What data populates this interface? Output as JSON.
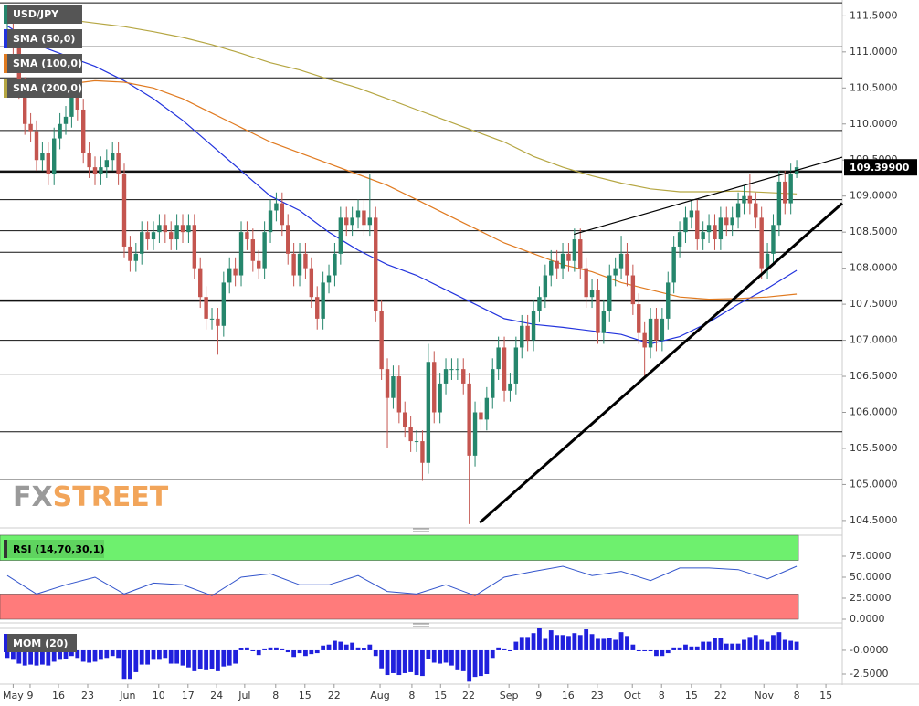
{
  "chart_data": [
    {
      "type": "candlestick",
      "title": "USD/JPY",
      "xlim": [
        -1.25,
        142.8
      ],
      "xticks": [
        {
          "value": 1.0,
          "label": "May"
        },
        {
          "value": 3.9,
          "label": "9"
        },
        {
          "value": 8.75,
          "label": "16"
        },
        {
          "value": 13.75,
          "label": "23"
        },
        {
          "value": 20.6,
          "label": "Jun"
        },
        {
          "value": 25.9,
          "label": "10"
        },
        {
          "value": 30.9,
          "label": "17"
        },
        {
          "value": 35.8,
          "label": "24"
        },
        {
          "value": 40.6,
          "label": "Jul"
        },
        {
          "value": 45.9,
          "label": "8"
        },
        {
          "value": 50.9,
          "label": "15"
        },
        {
          "value": 55.9,
          "label": "22"
        },
        {
          "value": 63.75,
          "label": "Aug"
        },
        {
          "value": 69.2,
          "label": "8"
        },
        {
          "value": 74.1,
          "label": "15"
        },
        {
          "value": 78.9,
          "label": "22"
        },
        {
          "value": 85.8,
          "label": "Sep"
        },
        {
          "value": 90.9,
          "label": "9"
        },
        {
          "value": 95.9,
          "label": "16"
        },
        {
          "value": 100.9,
          "label": "23"
        },
        {
          "value": 106.9,
          "label": "Oct"
        },
        {
          "value": 111.9,
          "label": "8"
        },
        {
          "value": 117,
          "label": "15"
        },
        {
          "value": 122,
          "label": "22"
        },
        {
          "value": 129.4,
          "label": "Nov"
        },
        {
          "value": 135,
          "label": "8"
        },
        {
          "value": 140,
          "label": "15"
        }
      ],
      "ylim": [
        104.41,
        111.72
      ],
      "yticks": [
        {
          "value": 104.5,
          "label": "104.5000"
        },
        {
          "value": 105,
          "label": "105.0000"
        },
        {
          "value": 105.5,
          "label": "105.5000"
        },
        {
          "value": 106,
          "label": "106.0000"
        },
        {
          "value": 106.5,
          "label": "106.5000"
        },
        {
          "value": 107,
          "label": "107.0000"
        },
        {
          "value": 107.5,
          "label": "107.5000"
        },
        {
          "value": 108,
          "label": "108.0000"
        },
        {
          "value": 108.5,
          "label": "108.5000"
        },
        {
          "value": 109,
          "label": "109.0000"
        },
        {
          "value": 109.5,
          "label": "109.5000"
        },
        {
          "value": 110,
          "label": "110.0000"
        },
        {
          "value": 110.5,
          "label": "110.5000"
        },
        {
          "value": 111,
          "label": "111.0000"
        },
        {
          "value": 111.5,
          "label": "111.5000"
        }
      ],
      "open": [
        111.2,
        111.3,
        111.1,
        110.5,
        110.0,
        109.9,
        109.5,
        109.6,
        109.3,
        109.8,
        110.0,
        110.1,
        110.4,
        110.2,
        109.6,
        109.4,
        109.3,
        109.4,
        109.5,
        109.6,
        109.3,
        108.3,
        108.1,
        108.2,
        108.5,
        108.4,
        108.5,
        108.6,
        108.5,
        108.4,
        108.6,
        108.5,
        108.6,
        108.0,
        107.6,
        107.3,
        107.3,
        107.2,
        107.8,
        108.0,
        107.9,
        108.5,
        108.4,
        108.1,
        108.0,
        108.5,
        108.8,
        108.9,
        108.6,
        108.2,
        107.9,
        108.2,
        108.0,
        107.6,
        107.3,
        107.8,
        107.9,
        108.2,
        108.7,
        108.6,
        108.7,
        108.8,
        108.6,
        108.7,
        107.4,
        106.6,
        106.2,
        106.5,
        106.0,
        105.8,
        105.6,
        105.6,
        105.3,
        106.7,
        106.0,
        106.4,
        106.6,
        106.6,
        106.6,
        106.4,
        105.4,
        106.0,
        105.9,
        106.2,
        106.6,
        106.9,
        106.3,
        106.4,
        106.9,
        107.2,
        107.0,
        107.4,
        107.6,
        107.9,
        108.1,
        108.0,
        108.2,
        108.1,
        108.4,
        108.0,
        107.6,
        107.7,
        107.1,
        107.4,
        107.9,
        108.0,
        108.2,
        107.9,
        107.5,
        107.1,
        106.9,
        107.3,
        107.0,
        107.3,
        107.8,
        108.3,
        108.5,
        108.7,
        108.8,
        108.4,
        108.5,
        108.6,
        108.4,
        108.7,
        108.6,
        108.7,
        108.9,
        109.0,
        108.9,
        108.7,
        108.0,
        108.2,
        108.6,
        109.2,
        108.9,
        109.3
      ],
      "high": [
        111.45,
        111.45,
        111.25,
        110.65,
        110.15,
        110.05,
        109.75,
        109.75,
        109.95,
        110.15,
        110.25,
        110.55,
        110.55,
        110.35,
        109.75,
        109.55,
        109.55,
        109.65,
        109.75,
        109.75,
        109.45,
        108.45,
        108.35,
        108.65,
        108.65,
        108.65,
        108.75,
        108.75,
        108.65,
        108.75,
        108.75,
        108.75,
        108.75,
        108.15,
        107.75,
        107.45,
        107.45,
        107.95,
        108.15,
        108.15,
        108.65,
        108.65,
        108.55,
        108.25,
        108.65,
        108.95,
        109.05,
        109.05,
        108.75,
        108.35,
        108.35,
        108.35,
        108.15,
        107.75,
        107.95,
        108.05,
        108.35,
        108.85,
        108.85,
        108.85,
        108.95,
        108.95,
        109.3,
        108.85,
        107.55,
        106.75,
        106.65,
        106.65,
        106.15,
        105.95,
        105.75,
        105.75,
        106.95,
        106.85,
        106.55,
        106.75,
        106.75,
        106.75,
        106.75,
        106.55,
        106.15,
        106.15,
        106.35,
        106.75,
        107.05,
        107.05,
        106.55,
        107.05,
        107.35,
        107.35,
        107.55,
        107.75,
        108.05,
        108.25,
        108.25,
        108.35,
        108.35,
        108.55,
        108.55,
        108.15,
        107.85,
        107.85,
        107.55,
        108.05,
        108.15,
        108.45,
        108.35,
        108.05,
        107.65,
        107.25,
        107.45,
        107.45,
        107.45,
        107.95,
        108.45,
        108.65,
        108.85,
        108.95,
        108.95,
        108.65,
        108.75,
        108.75,
        108.85,
        108.85,
        108.85,
        109.05,
        109.15,
        109.3,
        109.05,
        108.85,
        108.35,
        108.75,
        109.35,
        109.35,
        109.45,
        109.5
      ],
      "low": [
        111.05,
        110.95,
        110.35,
        109.85,
        109.75,
        109.35,
        109.35,
        109.15,
        109.15,
        109.65,
        109.85,
        109.95,
        110.05,
        109.45,
        109.25,
        109.15,
        109.15,
        109.25,
        109.35,
        109.15,
        108.15,
        107.95,
        107.95,
        108.05,
        108.25,
        108.25,
        108.35,
        108.35,
        108.25,
        108.25,
        108.35,
        108.35,
        107.85,
        107.45,
        107.15,
        107.15,
        106.8,
        107.05,
        107.65,
        107.75,
        107.75,
        108.25,
        107.95,
        107.85,
        107.85,
        108.35,
        108.65,
        108.45,
        108.05,
        107.75,
        107.75,
        107.85,
        107.45,
        107.15,
        107.15,
        107.65,
        107.75,
        108.05,
        108.45,
        108.45,
        108.55,
        108.45,
        108.45,
        107.25,
        106.45,
        105.5,
        106.05,
        105.85,
        105.65,
        105.45,
        105.45,
        105.05,
        105.15,
        105.85,
        105.85,
        106.25,
        106.45,
        106.45,
        106.25,
        104.45,
        105.25,
        105.75,
        105.75,
        106.05,
        106.45,
        106.15,
        106.15,
        106.25,
        106.75,
        106.85,
        106.85,
        107.25,
        107.45,
        107.75,
        107.85,
        107.85,
        107.95,
        107.95,
        107.85,
        107.45,
        107.45,
        106.95,
        106.95,
        107.25,
        107.75,
        107.85,
        107.75,
        107.35,
        106.95,
        106.5,
        106.75,
        106.85,
        106.85,
        107.15,
        107.65,
        108.15,
        108.35,
        108.55,
        108.25,
        108.25,
        108.35,
        108.25,
        108.25,
        108.45,
        108.45,
        108.55,
        108.75,
        108.75,
        108.55,
        107.85,
        107.85,
        108.05,
        108.45,
        108.75,
        108.75,
        109.25
      ],
      "close": [
        111.3,
        111.1,
        110.5,
        110.0,
        109.9,
        109.5,
        109.6,
        109.3,
        109.8,
        110.0,
        110.1,
        110.4,
        110.2,
        109.6,
        109.4,
        109.3,
        109.4,
        109.5,
        109.6,
        109.3,
        108.3,
        108.1,
        108.2,
        108.5,
        108.4,
        108.5,
        108.6,
        108.5,
        108.4,
        108.6,
        108.5,
        108.6,
        108.0,
        107.6,
        107.3,
        107.3,
        107.2,
        107.8,
        108.0,
        107.9,
        108.5,
        108.4,
        108.1,
        108.0,
        108.5,
        108.8,
        108.9,
        108.6,
        108.2,
        107.9,
        108.2,
        108.0,
        107.6,
        107.3,
        107.8,
        107.9,
        108.2,
        108.7,
        108.6,
        108.7,
        108.8,
        108.6,
        108.7,
        107.4,
        106.6,
        106.2,
        106.5,
        106.0,
        105.8,
        105.6,
        105.6,
        105.3,
        106.7,
        106.0,
        106.4,
        106.6,
        106.6,
        106.6,
        106.4,
        105.4,
        106.0,
        105.9,
        106.2,
        106.6,
        106.9,
        106.3,
        106.4,
        106.9,
        107.2,
        107.0,
        107.4,
        107.6,
        107.9,
        108.1,
        108.0,
        108.2,
        108.1,
        108.4,
        108.0,
        107.6,
        107.7,
        107.1,
        107.4,
        107.9,
        108.0,
        108.2,
        107.9,
        107.5,
        107.1,
        106.9,
        107.3,
        107.0,
        107.3,
        107.8,
        108.3,
        108.5,
        108.7,
        108.8,
        108.4,
        108.5,
        108.6,
        108.4,
        108.7,
        108.6,
        108.7,
        108.9,
        109.0,
        108.9,
        108.7,
        108.0,
        108.2,
        108.6,
        109.2,
        108.9,
        109.3,
        109.4
      ],
      "up_color": "#25866c",
      "down_color": "#c4554f",
      "last_price": {
        "value": 109.399,
        "label": "109.39900"
      },
      "series": [
        {
          "name": "SMA (50,0)",
          "color": "#2233dd",
          "x": [
            0,
            5,
            10,
            15,
            20,
            25,
            30,
            35,
            40,
            45,
            50,
            55,
            60,
            65,
            70,
            75,
            80,
            85,
            90,
            95,
            100,
            105,
            110,
            115,
            120,
            125,
            130,
            135
          ],
          "values": [
            111.36,
            111.1,
            110.95,
            110.8,
            110.6,
            110.35,
            110.05,
            109.7,
            109.35,
            109.0,
            108.8,
            108.5,
            108.25,
            108.05,
            107.9,
            107.7,
            107.5,
            107.3,
            107.22,
            107.18,
            107.13,
            107.08,
            106.95,
            107.05,
            107.25,
            107.5,
            107.72,
            107.97
          ]
        },
        {
          "name": "SMA (100,0)",
          "color": "#e07a20",
          "x": [
            0,
            5,
            10,
            15,
            20,
            25,
            30,
            35,
            40,
            45,
            50,
            55,
            60,
            65,
            70,
            75,
            80,
            85,
            90,
            95,
            100,
            105,
            110,
            115,
            120,
            125,
            130,
            135
          ],
          "values": [
            110.45,
            110.5,
            110.55,
            110.6,
            110.58,
            110.5,
            110.35,
            110.15,
            109.95,
            109.75,
            109.6,
            109.45,
            109.3,
            109.15,
            108.95,
            108.75,
            108.55,
            108.35,
            108.2,
            108.05,
            107.95,
            107.8,
            107.7,
            107.6,
            107.57,
            107.58,
            107.6,
            107.64
          ]
        },
        {
          "name": "SMA (200,0)",
          "color": "#b5a642",
          "x": [
            0,
            5,
            10,
            15,
            20,
            25,
            30,
            35,
            40,
            45,
            50,
            55,
            60,
            65,
            70,
            75,
            80,
            85,
            90,
            95,
            100,
            105,
            110,
            115,
            120,
            125,
            130,
            135
          ],
          "values": [
            111.5,
            111.48,
            111.45,
            111.4,
            111.35,
            111.28,
            111.2,
            111.1,
            110.98,
            110.85,
            110.75,
            110.62,
            110.5,
            110.35,
            110.2,
            110.05,
            109.9,
            109.75,
            109.55,
            109.4,
            109.28,
            109.18,
            109.1,
            109.06,
            109.06,
            109.07,
            109.05,
            109.03
          ]
        }
      ],
      "levels": [
        111.68,
        111.07,
        110.64,
        109.91,
        108.95,
        108.52,
        108.22,
        107.0,
        106.53,
        105.73,
        105.07
      ],
      "bold_levels": [
        109.34,
        107.55
      ],
      "trendlines": [
        {
          "x": [
            80.8,
            142.8
          ],
          "values": [
            104.47,
            108.9
          ],
          "bold": true
        },
        {
          "x": [
            96.9,
            142.8
          ],
          "values": [
            108.47,
            109.54
          ],
          "bold": false
        }
      ],
      "watermark": [
        "FX",
        "STREET"
      ]
    },
    {
      "type": "line",
      "title": "RSI (14,70,30,1)",
      "color": "#3355cc",
      "ylim": [
        0,
        100
      ],
      "yticks": [
        {
          "value": 0,
          "label": "0.0000"
        },
        {
          "value": 25,
          "label": "25.0000"
        },
        {
          "value": 50,
          "label": "50.0000"
        },
        {
          "value": 75,
          "label": "75.0000"
        }
      ],
      "bands": [
        {
          "from": 70,
          "to": 100,
          "color": "#6ef06e"
        },
        {
          "from": 0,
          "to": 30,
          "color": "#ff7b7b"
        }
      ],
      "x": [
        0,
        5,
        10,
        15,
        20,
        25,
        30,
        35,
        40,
        45,
        50,
        55,
        60,
        65,
        70,
        75,
        80,
        85,
        90,
        95,
        100,
        105,
        110,
        115,
        120,
        125,
        130,
        135
      ],
      "values": [
        52,
        30,
        41,
        50,
        30,
        43,
        41,
        28,
        50,
        54,
        41,
        41,
        52,
        33,
        30,
        41,
        28,
        50,
        57,
        63,
        52,
        57,
        46,
        61,
        61,
        59,
        48,
        63
      ]
    },
    {
      "type": "bar",
      "title": "MOM (20)",
      "color": "#2020dd",
      "ylim": [
        -3.46,
        2.3
      ],
      "yticks": [
        {
          "value": -2.5,
          "label": "-2.5000"
        },
        {
          "value": 0,
          "label": "-0.0000"
        }
      ],
      "values": [
        -0.8,
        -1.0,
        -1.4,
        -1.6,
        -1.5,
        -1.6,
        -1.5,
        -1.6,
        -1.2,
        -1.0,
        -0.9,
        -0.6,
        -0.8,
        -1.2,
        -1.3,
        -1.2,
        -1.0,
        -0.8,
        -0.6,
        -0.8,
        -3.0,
        -3.0,
        -2.3,
        -1.5,
        -1.5,
        -1.0,
        -1.0,
        -0.8,
        -1.4,
        -1.4,
        -1.6,
        -1.8,
        -2.2,
        -2.0,
        -2.1,
        -2.0,
        -2.2,
        -1.7,
        -1.6,
        -1.4,
        0.2,
        0.3,
        -0.1,
        -0.5,
        0.1,
        0.3,
        0.3,
        0.1,
        -0.2,
        -0.7,
        -0.3,
        -0.6,
        -0.4,
        -0.3,
        0.5,
        0.6,
        1.0,
        0.9,
        0.6,
        0.8,
        0.3,
        0.2,
        0.6,
        -0.6,
        -1.9,
        -2.6,
        -2.4,
        -2.6,
        -2.4,
        -2.3,
        -2.6,
        -2.7,
        -0.9,
        -1.3,
        -1.4,
        -1.3,
        -1.6,
        -2.1,
        -2.2,
        -3.3,
        -2.8,
        -2.7,
        -2.5,
        -0.8,
        0.3,
        0.1,
        -0.1,
        0.9,
        1.4,
        1.4,
        1.8,
        2.3,
        1.2,
        2.1,
        1.6,
        1.6,
        1.5,
        1.8,
        1.6,
        2.2,
        1.7,
        1.2,
        1.2,
        1.3,
        1.1,
        1.9,
        1.5,
        0.6,
        -0.1,
        -0.1,
        -0.1,
        -0.6,
        -0.6,
        -0.3,
        0.3,
        0.3,
        0.6,
        0.4,
        0.4,
        0.9,
        0.9,
        1.3,
        1.3,
        0.7,
        0.7,
        0.7,
        1.1,
        1.4,
        1.6,
        1.1,
        0.9,
        1.6,
        1.9,
        1.1,
        1.0,
        0.9
      ]
    }
  ]
}
